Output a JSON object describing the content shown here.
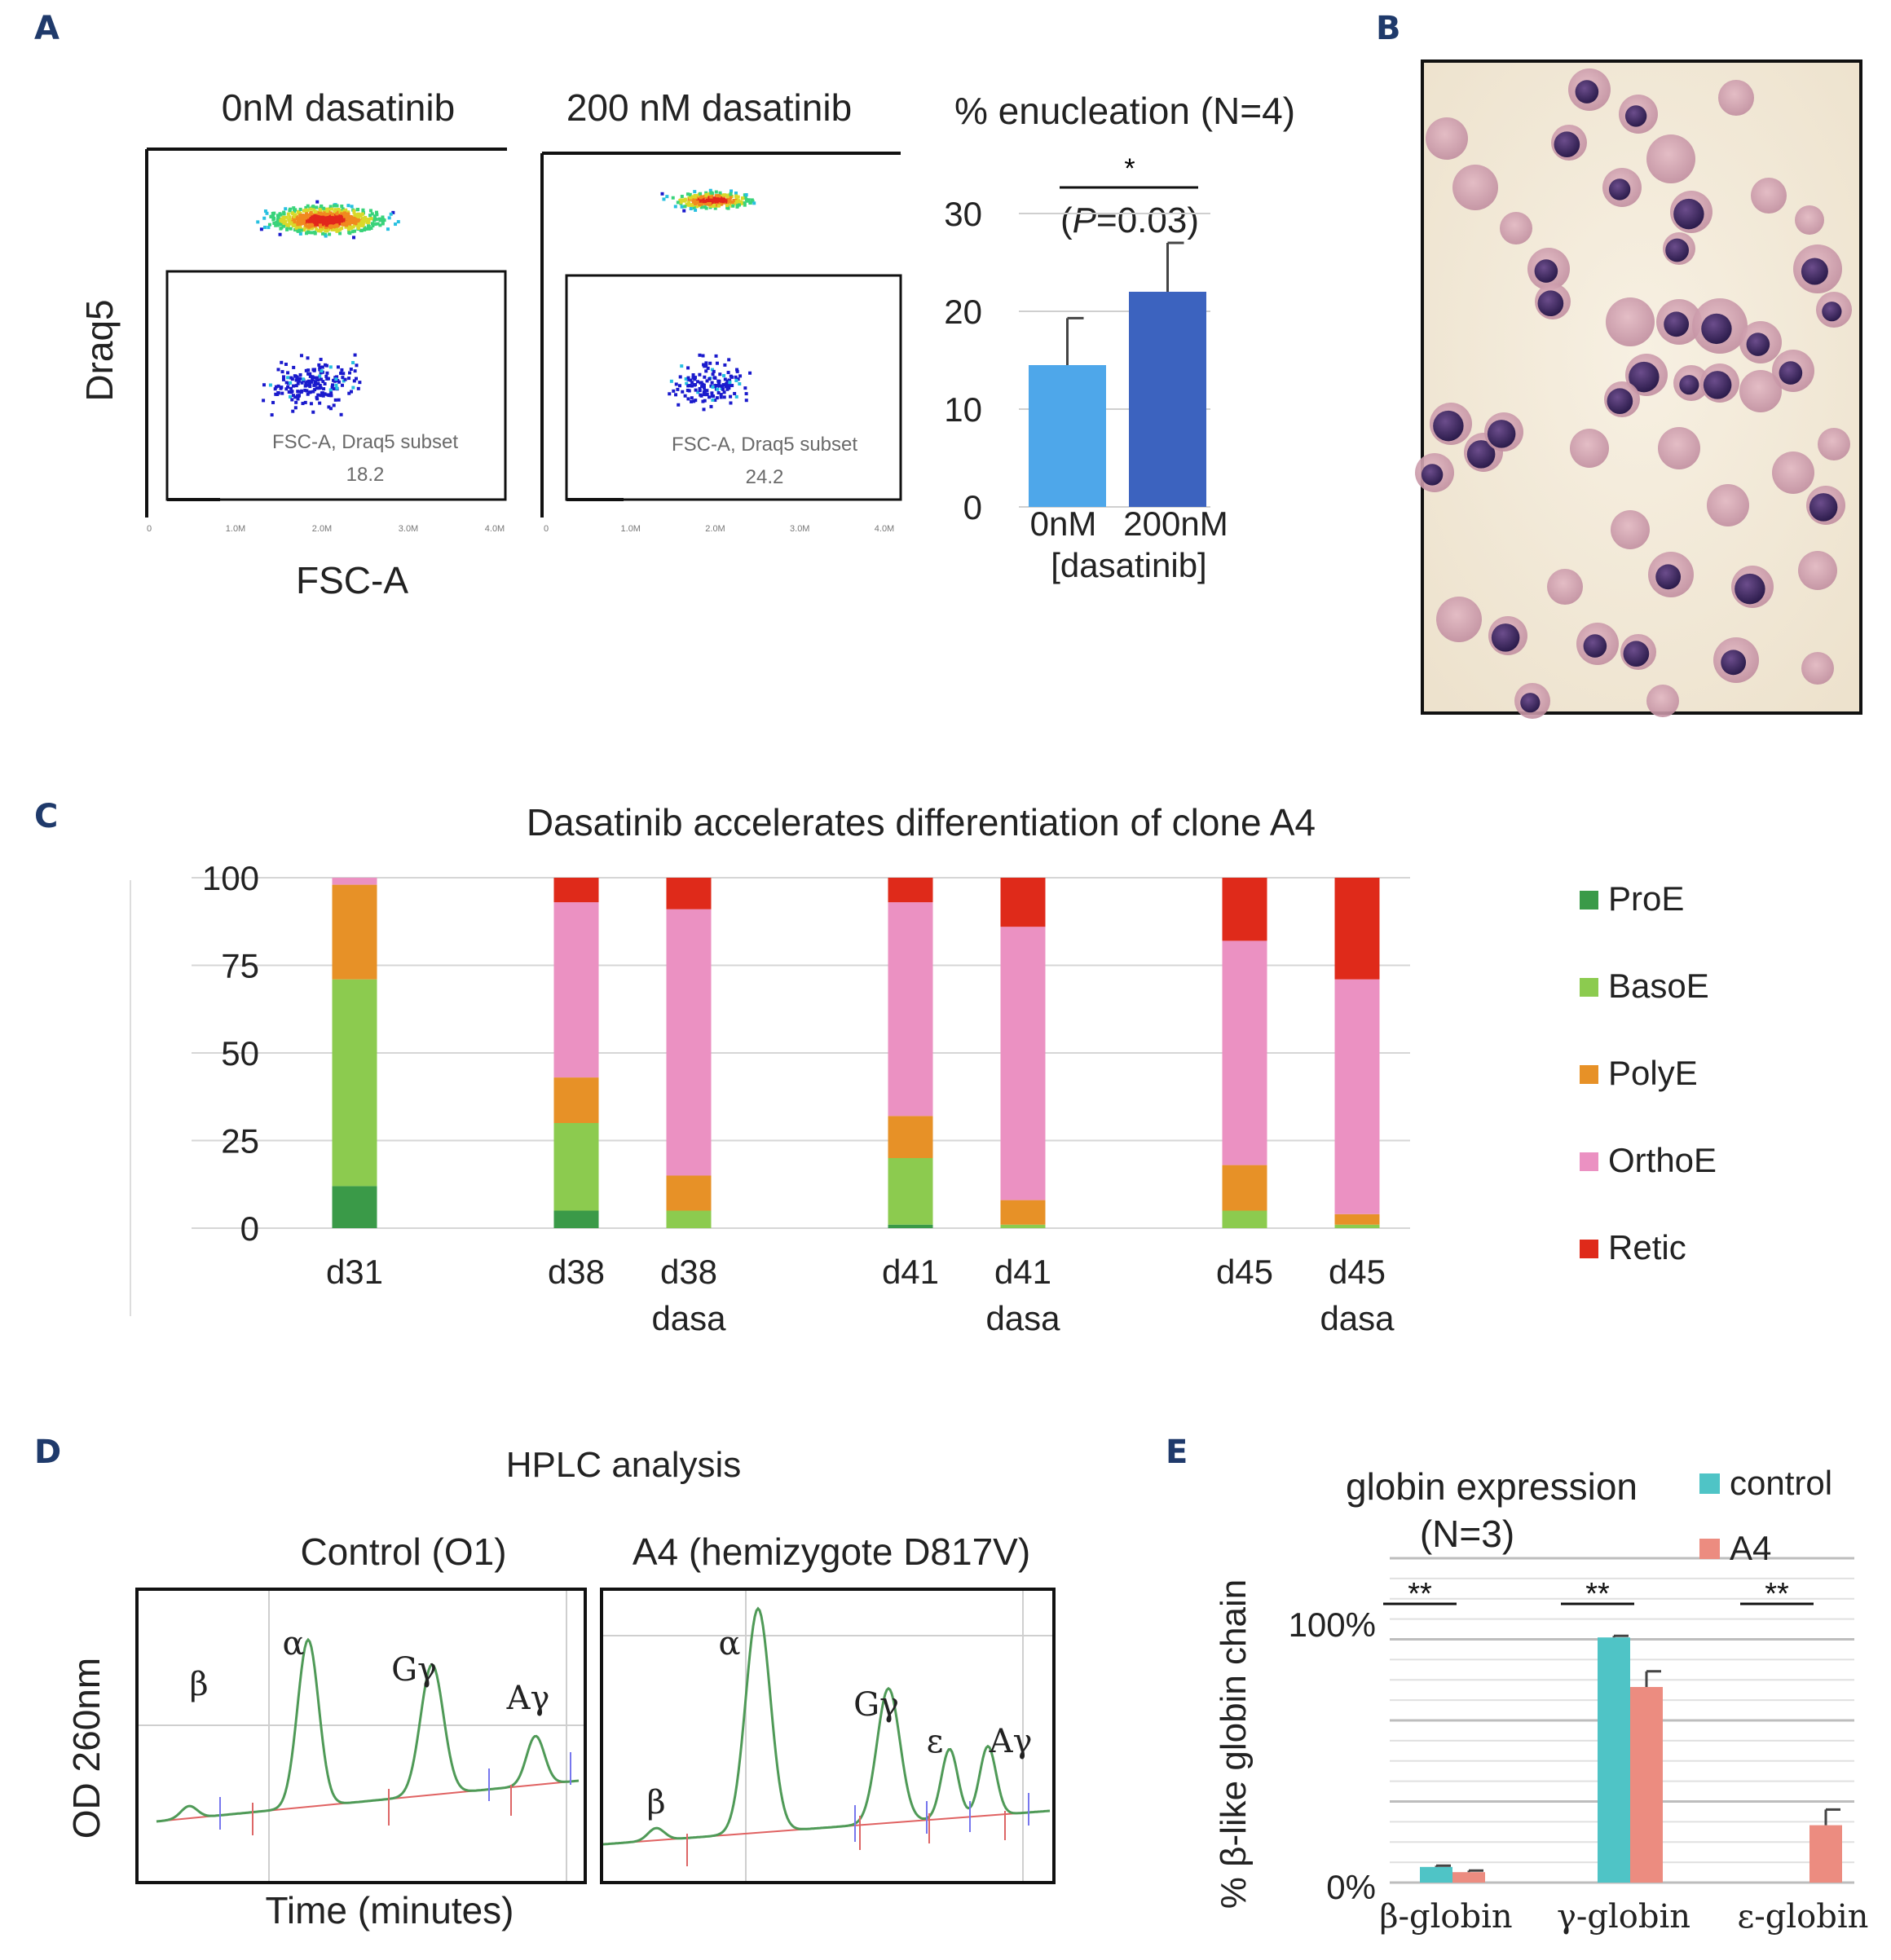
{
  "panel_labels": [
    "A",
    "B",
    "C",
    "D",
    "E"
  ],
  "chart_data": [
    {
      "id": "A-flow",
      "type": "scatter",
      "titles": [
        "0nM dasatinib",
        "200 nM dasatinib"
      ],
      "xlabel": "FSC-A",
      "ylabel": "Draq5",
      "x_ticks": [
        "0",
        "1.0M",
        "2.0M",
        "3.0M",
        "4.0M"
      ],
      "gate_label": "FSC-A, Draq5 subset",
      "gate_values": [
        "18.2",
        "24.2"
      ]
    },
    {
      "id": "A-bar",
      "type": "bar",
      "title": "% enucleation (N=4)",
      "categories": [
        "0nM",
        "200nM"
      ],
      "values": [
        14.5,
        22
      ],
      "errors": [
        4.8,
        5
      ],
      "colors": [
        "#4ea7ea",
        "#3c63bf"
      ],
      "xlabel": "[dasatinib]",
      "ylim": [
        0,
        30
      ],
      "yticks": [
        "0",
        "10",
        "20",
        "30"
      ],
      "significance": "*",
      "p_value_prefix": "(",
      "p_value_italic": "P",
      "p_value_suffix": "=0.03)"
    },
    {
      "id": "C",
      "type": "bar",
      "stacked": true,
      "title": "Dasatinib accelerates differentiation of clone A4",
      "categories": [
        "d31",
        "d38",
        "d38 dasa",
        "d41",
        "d41 dasa",
        "d45",
        "d45 dasa"
      ],
      "category_lines": [
        [
          "d31"
        ],
        [
          "d38"
        ],
        [
          "d38",
          "dasa"
        ],
        [
          "d41"
        ],
        [
          "d41",
          "dasa"
        ],
        [
          "d45"
        ],
        [
          "d45",
          "dasa"
        ]
      ],
      "ylim": [
        0,
        100
      ],
      "yticks": [
        "0",
        "25",
        "50",
        "75",
        "100"
      ],
      "legend_position": "right",
      "series": [
        {
          "name": "ProE",
          "color": "#3a9a48",
          "values": [
            12,
            5,
            0,
            1,
            0,
            0,
            0
          ]
        },
        {
          "name": "BasoE",
          "color": "#8ccb4f",
          "values": [
            59,
            25,
            5,
            19,
            1,
            5,
            1
          ]
        },
        {
          "name": "PolyE",
          "color": "#e79127",
          "values": [
            27,
            13,
            10,
            12,
            7,
            13,
            3
          ]
        },
        {
          "name": "OrthoE",
          "color": "#eb91c2",
          "values": [
            2,
            50,
            76,
            61,
            78,
            64,
            67
          ]
        },
        {
          "name": "Retic",
          "color": "#df2a1a",
          "values": [
            0,
            7,
            9,
            7,
            14,
            18,
            29
          ]
        }
      ]
    },
    {
      "id": "D",
      "type": "line",
      "title": "HPLC analysis",
      "subtitles": [
        "Control (O1)",
        "A4 (hemizygote D817V)"
      ],
      "xlabel": "Time (minutes)",
      "ylabel": "OD 260nm",
      "peaks_control": [
        "β",
        "α",
        "Gγ",
        "Aγ"
      ],
      "peaks_a4": [
        "β",
        "α",
        "Gγ",
        "ε",
        "Aγ"
      ]
    },
    {
      "id": "E",
      "type": "bar",
      "title": "globin expression",
      "subtitle": "(N=3)",
      "ylabel": "% β-like globin chain",
      "yticks": [
        "0%",
        "100%"
      ],
      "ylim": [
        0,
        100
      ],
      "categories": [
        "β-globin",
        "γ-globin",
        "ε-globin"
      ],
      "series": [
        {
          "name": "control",
          "color": "#4fc4c6",
          "values": [
            6,
            94,
            0
          ],
          "errors": [
            0.5,
            0.6,
            0
          ]
        },
        {
          "name": "A4",
          "color": "#ec8c80",
          "values": [
            4,
            75,
            22
          ],
          "errors": [
            0.6,
            6,
            6
          ]
        }
      ],
      "significance": [
        "**",
        "**",
        "**"
      ]
    }
  ]
}
